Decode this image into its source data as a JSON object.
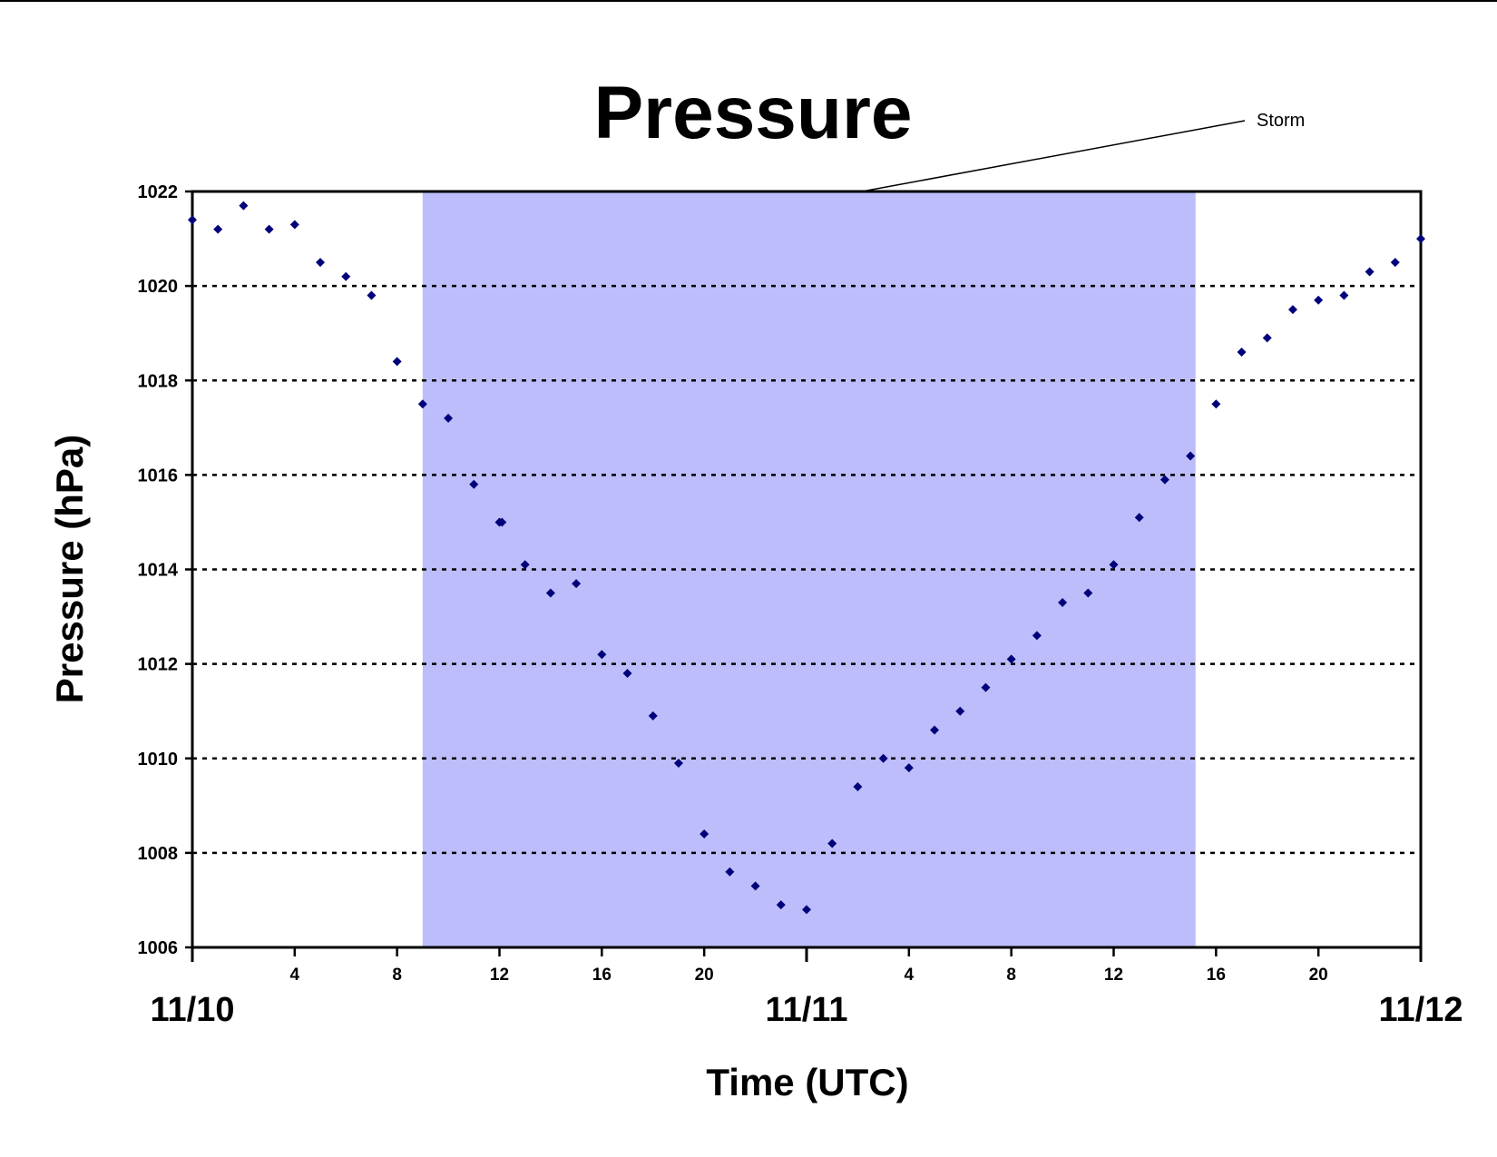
{
  "chart_data": {
    "type": "scatter",
    "title": "Pressure",
    "xlabel": "Time (UTC)",
    "ylabel": "Pressure (hPa)",
    "ylim": [
      1006,
      1022
    ],
    "yticks": [
      1006,
      1008,
      1010,
      1012,
      1014,
      1016,
      1018,
      1020,
      1022
    ],
    "xlim_hours": [
      0,
      48
    ],
    "hour_tick_labels": [
      "4",
      "8",
      "12",
      "16",
      "20",
      "4",
      "8",
      "12",
      "16",
      "20"
    ],
    "date_labels": [
      "11/10",
      "11/11",
      "11/12"
    ],
    "grid": "horizontal dotted",
    "annotation": {
      "text": "Storm",
      "shaded_span_hours": [
        9,
        39.2
      ],
      "shade_color": "#bcbdfa"
    },
    "marker_color": "#00007a",
    "series": [
      {
        "x": [
          0,
          1,
          2,
          3,
          4,
          5,
          6,
          7,
          8,
          9,
          10,
          11,
          12,
          12.1,
          13,
          14,
          15,
          16,
          17,
          18,
          19,
          20,
          21,
          22,
          23,
          24,
          25,
          26,
          27,
          28,
          29,
          30,
          31,
          32,
          33,
          34,
          35,
          36,
          37,
          38,
          39,
          40,
          41,
          42,
          43,
          44,
          45,
          46,
          47,
          48
        ],
        "y": [
          1021.4,
          1021.2,
          1021.7,
          1021.2,
          1021.3,
          1020.5,
          1020.2,
          1019.8,
          1018.4,
          1017.5,
          1017.2,
          1015.8,
          1015.0,
          1015.0,
          1014.1,
          1013.5,
          1013.7,
          1012.2,
          1011.8,
          1010.9,
          1009.9,
          1008.4,
          1007.6,
          1007.3,
          1006.9,
          1006.8,
          1008.2,
          1009.4,
          1010.0,
          1009.8,
          1010.6,
          1011.0,
          1011.5,
          1012.1,
          1012.6,
          1013.3,
          1013.5,
          1014.1,
          1015.1,
          1015.9,
          1016.4,
          1017.5,
          1018.6,
          1018.9,
          1019.5,
          1019.7,
          1019.8,
          1020.3,
          1020.5,
          1021.0
        ]
      }
    ]
  }
}
